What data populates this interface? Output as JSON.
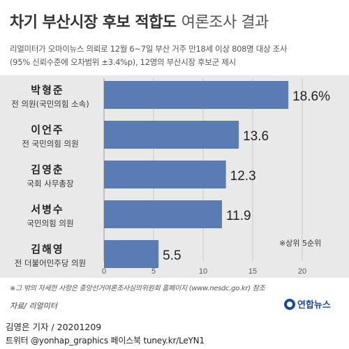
{
  "header": {
    "title_bold": "차기 부산시장 후보 적합도",
    "title_light": "여론조사 결과",
    "subtitle_line1": "리얼미터가 오마이뉴스 의뢰로 12월 6~7일 부산 거주 만18세 이상 808명 대상 조사",
    "subtitle_line2": "(95% 신뢰수준에 오차범위 ±3.4%p), 12명의 부산시장 후보군 제시"
  },
  "chart_data": {
    "type": "bar",
    "orientation": "horizontal",
    "categories": [
      "박형준",
      "이언주",
      "김영춘",
      "서병수",
      "김해영"
    ],
    "descriptions": [
      "전 의원(국민의힘 소속)",
      "전 국민의힘 의원",
      "국회 사무총장",
      "국민의힘 의원",
      "전 더불어민주당 의원"
    ],
    "values": [
      18.6,
      13.6,
      12.3,
      11.9,
      5.5
    ],
    "value_labels": [
      "18.6%",
      "13.6",
      "12.3",
      "11.9",
      "5.5"
    ],
    "xlim": [
      0,
      20
    ],
    "xticks": [
      "0",
      "5",
      "10",
      "15",
      "20"
    ],
    "bar_color": "#5b7bb4",
    "annotation": "※상위 5순위",
    "grid": true
  },
  "footer": {
    "note": "※그 밖의 자세한 사항은 중앙선거여론조사심의위원회 홈페이지 (www.nesdc.go.kr) 참조",
    "source": "자료/ 리얼미터",
    "logo_text": "연합뉴스",
    "credit_line1": "김영은 기자 / 20201209",
    "credit_line2": "트위터 @yonhap_graphics  페이스북 tuney.kr/LeYN1"
  }
}
